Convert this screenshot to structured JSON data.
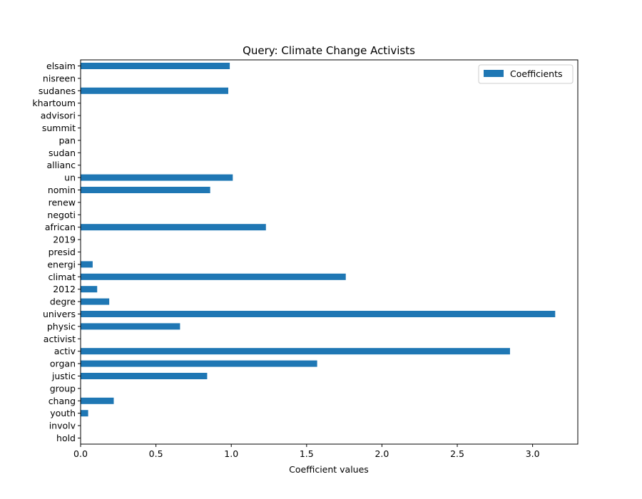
{
  "chart_data": {
    "type": "bar",
    "orientation": "horizontal",
    "title": "Query: Climate Change Activists",
    "xlabel": "Coefficient values",
    "ylabel": "",
    "xlim": [
      0,
      3.3
    ],
    "xticks": [
      "0.0",
      "0.5",
      "1.0",
      "1.5",
      "2.0",
      "2.5",
      "3.0"
    ],
    "grid": false,
    "legend_position": "top-right",
    "bar_color": "#1f77b4",
    "categories": [
      "elsaim",
      "nisreen",
      "sudanes",
      "khartoum",
      "advisori",
      "summit",
      "pan",
      "sudan",
      "allianc",
      "un",
      "nomin",
      "renew",
      "negoti",
      "african",
      "2019",
      "presid",
      "energi",
      "climat",
      "2012",
      "degre",
      "univers",
      "physic",
      "activist",
      "activ",
      "organ",
      "justic",
      "group",
      "chang",
      "youth",
      "involv",
      "hold"
    ],
    "series": [
      {
        "name": "Coefficients",
        "values": [
          0.99,
          0.0,
          0.98,
          0.0,
          0.0,
          0.0,
          0.0,
          0.0,
          0.0,
          1.01,
          0.86,
          0.0,
          0.0,
          1.23,
          0.0,
          0.0,
          0.08,
          1.76,
          0.11,
          0.19,
          3.15,
          0.66,
          0.0,
          2.85,
          1.57,
          0.84,
          0.0,
          0.22,
          0.05,
          0.0,
          0.0
        ]
      }
    ]
  }
}
